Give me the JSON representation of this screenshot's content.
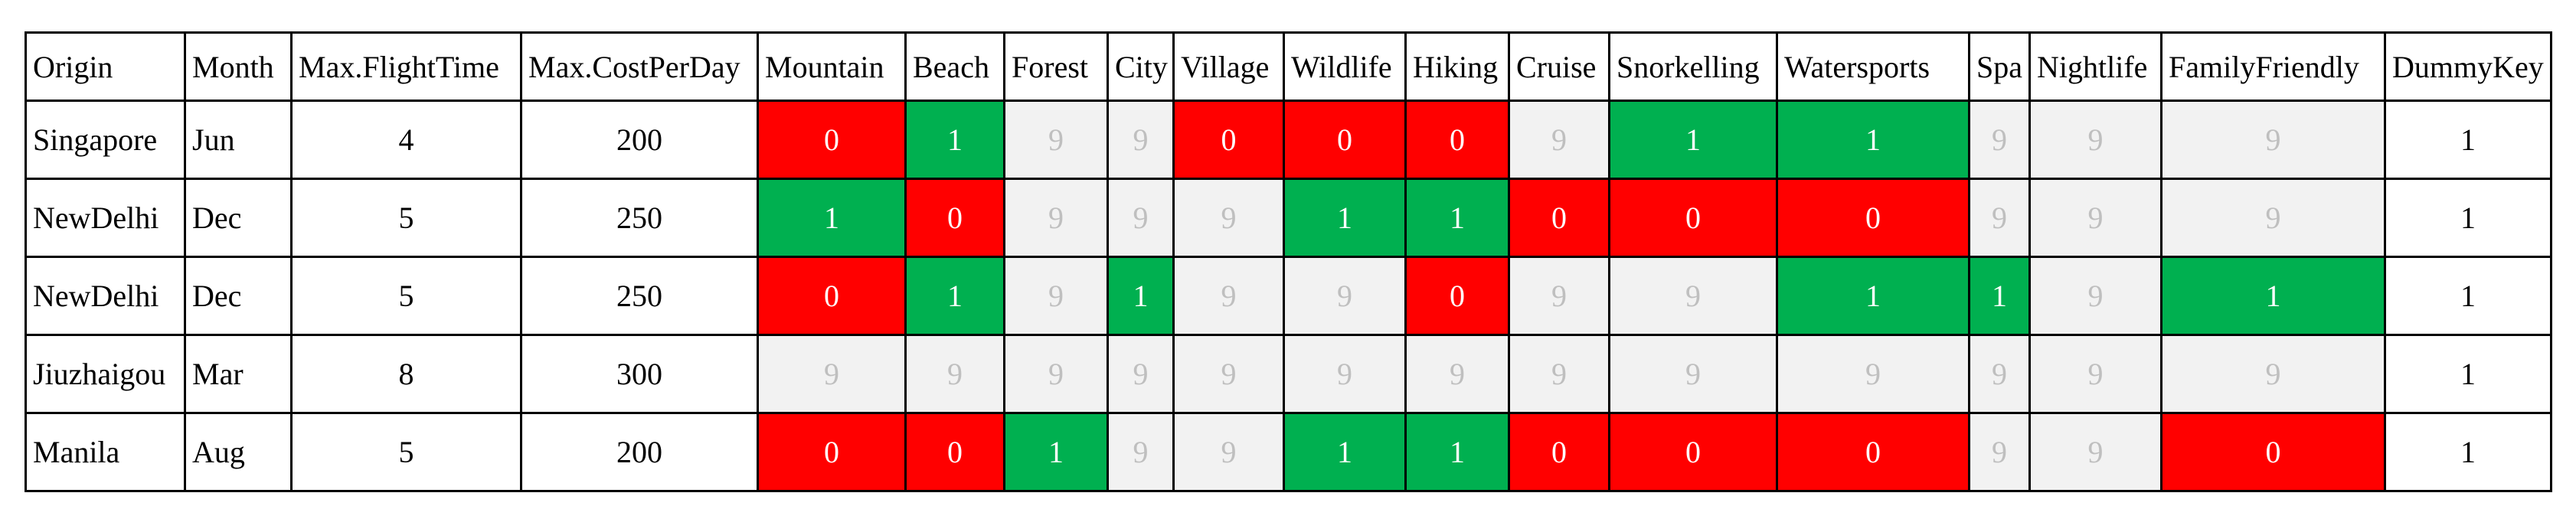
{
  "table": {
    "header": [
      "Origin",
      "Month",
      "Max.FlightTime",
      "Max.CostPerDay",
      "Mountain",
      "Beach",
      "Forest",
      "City",
      "Village",
      "Wildlife",
      "Hiking",
      "Cruise",
      "Snorkelling",
      "Watersports",
      "Spa",
      "Nightlife",
      "FamilyFriendly",
      "DummyKey"
    ],
    "rows": [
      [
        "Singapore",
        "Jun",
        4,
        200,
        0,
        1,
        9,
        9,
        0,
        0,
        0,
        9,
        1,
        1,
        9,
        9,
        9,
        1
      ],
      [
        "NewDelhi",
        "Dec",
        5,
        250,
        1,
        0,
        9,
        9,
        9,
        1,
        1,
        0,
        0,
        0,
        9,
        9,
        9,
        1
      ],
      [
        "NewDelhi",
        "Dec",
        5,
        250,
        0,
        1,
        9,
        1,
        9,
        9,
        0,
        9,
        9,
        1,
        1,
        9,
        1,
        1
      ],
      [
        "Jiuzhaigou",
        "Mar",
        8,
        300,
        9,
        9,
        9,
        9,
        9,
        9,
        9,
        9,
        9,
        9,
        9,
        9,
        9,
        1
      ],
      [
        "Manila",
        "Aug",
        5,
        200,
        0,
        0,
        1,
        9,
        9,
        1,
        1,
        0,
        0,
        0,
        9,
        9,
        0,
        1
      ]
    ]
  }
}
